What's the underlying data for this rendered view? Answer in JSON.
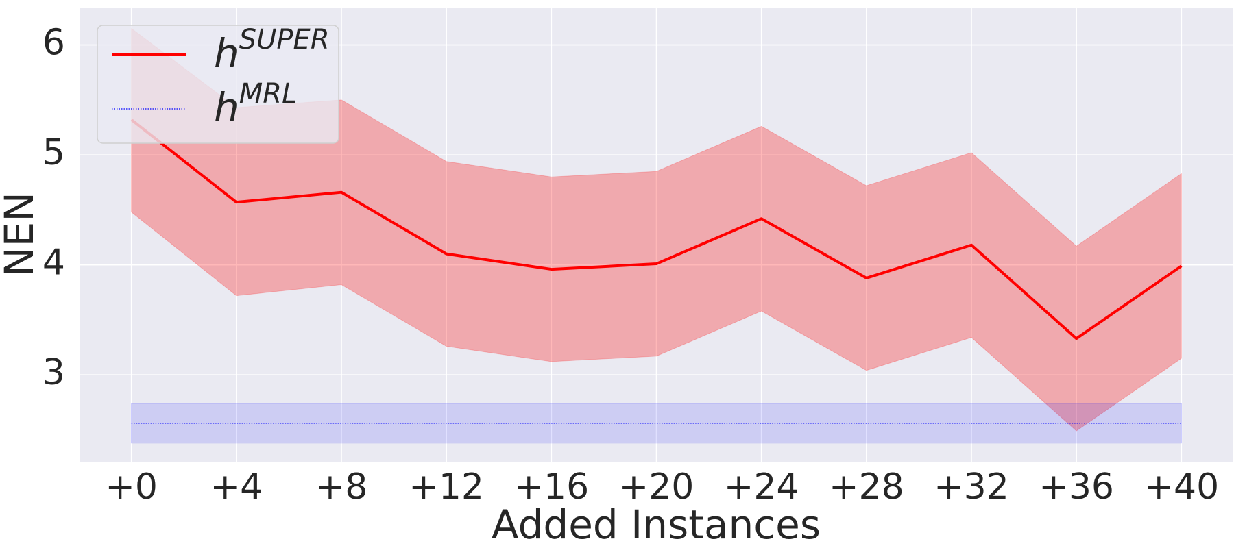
{
  "chart_data": {
    "type": "line",
    "xlabel": "Added Instances",
    "ylabel": "NEN",
    "x": [
      0,
      4,
      8,
      12,
      16,
      20,
      24,
      28,
      32,
      36,
      40
    ],
    "xlim": [
      -1.95,
      41.95
    ],
    "xticks": [
      {
        "value": 0,
        "label": "+0"
      },
      {
        "value": 4,
        "label": "+4"
      },
      {
        "value": 8,
        "label": "+8"
      },
      {
        "value": 12,
        "label": "+12"
      },
      {
        "value": 16,
        "label": "+16"
      },
      {
        "value": 20,
        "label": "+20"
      },
      {
        "value": 24,
        "label": "+24"
      },
      {
        "value": 28,
        "label": "+28"
      },
      {
        "value": 32,
        "label": "+32"
      },
      {
        "value": 36,
        "label": "+36"
      },
      {
        "value": 40,
        "label": "+40"
      }
    ],
    "ylim": [
      2.21,
      6.34
    ],
    "yticks": [
      3,
      4,
      5,
      6
    ],
    "grid": true,
    "legend": "upper left",
    "series": [
      {
        "name": "h",
        "superscript": "SUPER",
        "color": "#ff0000",
        "style": "solid",
        "values": [
          5.32,
          4.57,
          4.66,
          4.1,
          3.96,
          4.01,
          4.42,
          3.88,
          4.18,
          3.33,
          3.99
        ],
        "lower": [
          4.48,
          3.72,
          3.82,
          3.26,
          3.12,
          3.17,
          3.58,
          3.04,
          3.34,
          2.49,
          3.15
        ],
        "upper": [
          6.15,
          5.43,
          5.5,
          4.94,
          4.8,
          4.85,
          5.26,
          4.72,
          5.02,
          4.17,
          4.83
        ]
      },
      {
        "name": "h",
        "superscript": "MRL",
        "color": "#0000ff",
        "style": "dotted",
        "values": [
          2.56,
          2.56,
          2.56,
          2.56,
          2.56,
          2.56,
          2.56,
          2.56,
          2.56,
          2.56,
          2.56
        ],
        "lower": [
          2.38,
          2.38,
          2.38,
          2.38,
          2.38,
          2.38,
          2.38,
          2.38,
          2.38,
          2.38,
          2.38
        ],
        "upper": [
          2.74,
          2.74,
          2.74,
          2.74,
          2.74,
          2.74,
          2.74,
          2.74,
          2.74,
          2.74,
          2.74
        ]
      }
    ]
  }
}
